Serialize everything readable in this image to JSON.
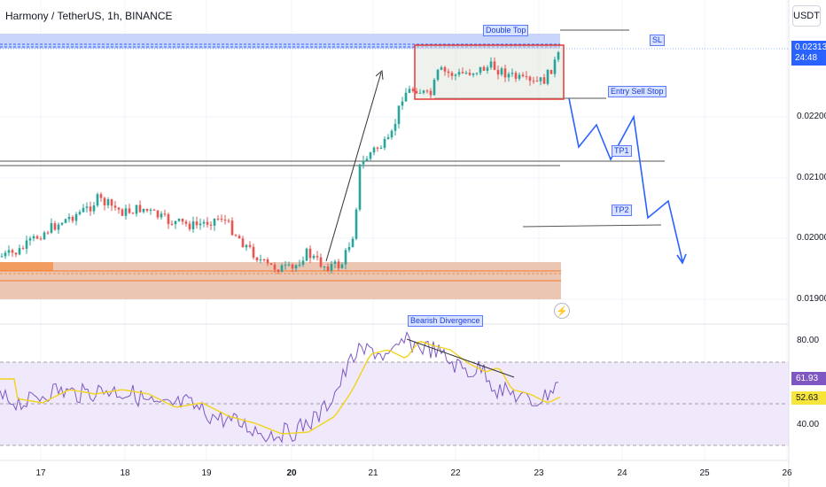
{
  "header": {
    "title": "Harmony / TetherUS, 1h, BINANCE",
    "currency_button": "USDT"
  },
  "price_axis": {
    "labels": [
      "0.02200",
      "0.02100",
      "0.02000",
      "0.01900"
    ],
    "current_price": "0.02313",
    "countdown": "24:48"
  },
  "rsi_axis": {
    "labels": [
      "80.00",
      "40.00"
    ],
    "rsi_value": "61.93",
    "ma_value": "52.63"
  },
  "time_axis": {
    "labels": [
      "17",
      "18",
      "19",
      "20",
      "21",
      "22",
      "23",
      "24",
      "25",
      "26"
    ]
  },
  "annotations": {
    "double_top": "Double Top",
    "sl": "SL",
    "entry": "Entry Sell Stop",
    "tp1": "TP1",
    "tp2": "TP2",
    "divergence": "Bearish Divergence"
  },
  "colors": {
    "up": "#26a69a",
    "down": "#ef5350",
    "projection": "#2962ff",
    "rsi_line": "#7e57c2",
    "rsi_ma": "#f7e53b",
    "accent": "#2962ff"
  },
  "icons": {
    "flash": "lightning-icon"
  }
}
